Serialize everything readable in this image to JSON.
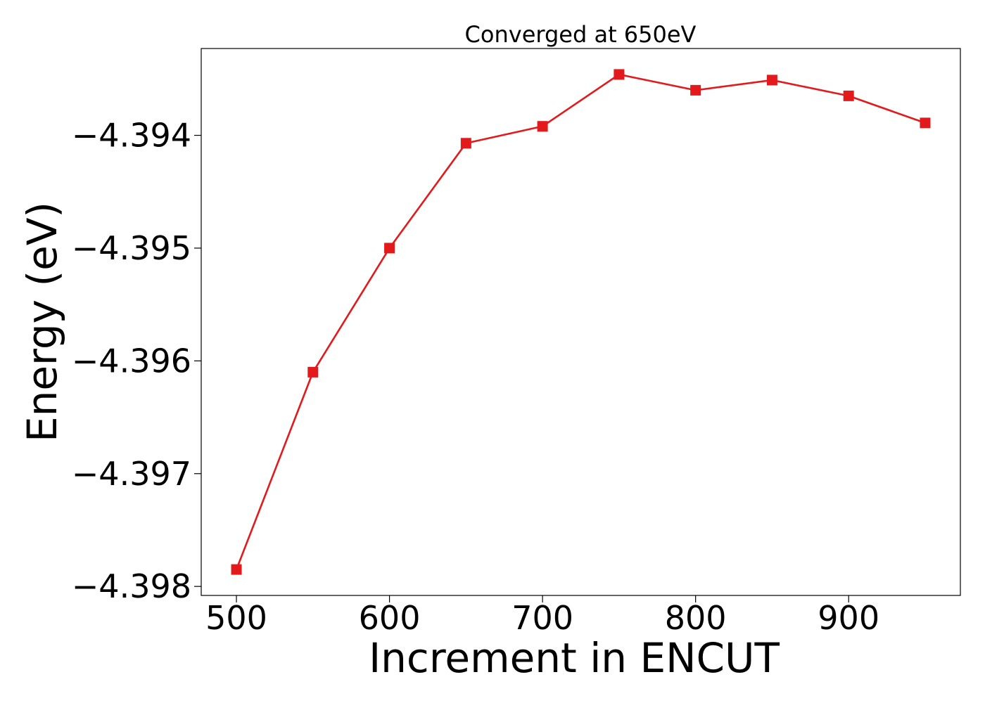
{
  "chart_data": {
    "type": "line",
    "title": "Converged at 650eV",
    "xlabel": "Increment in ENCUT",
    "ylabel": "Energy (eV)",
    "x": [
      500,
      550,
      600,
      650,
      700,
      750,
      800,
      850,
      900,
      950
    ],
    "series": [
      {
        "values": [
          -4.39785,
          -4.3961,
          -4.395,
          -4.39407,
          -4.39392,
          -4.39346,
          -4.3936,
          -4.39351,
          -4.39365,
          -4.39389
        ]
      }
    ],
    "xlim": [
      477,
      973
    ],
    "ylim": [
      -4.39808,
      -4.39323
    ],
    "xticks": [
      500,
      600,
      700,
      800,
      900
    ],
    "xtick_labels": [
      "500",
      "600",
      "700",
      "800",
      "900"
    ],
    "yticks": [
      -4.398,
      -4.397,
      -4.396,
      -4.395,
      -4.394
    ],
    "ytick_labels": [
      "−4.398",
      "−4.397",
      "−4.396",
      "−4.395",
      "−4.394"
    ],
    "grid": false,
    "marker": "square",
    "color": "#e31a1c"
  }
}
